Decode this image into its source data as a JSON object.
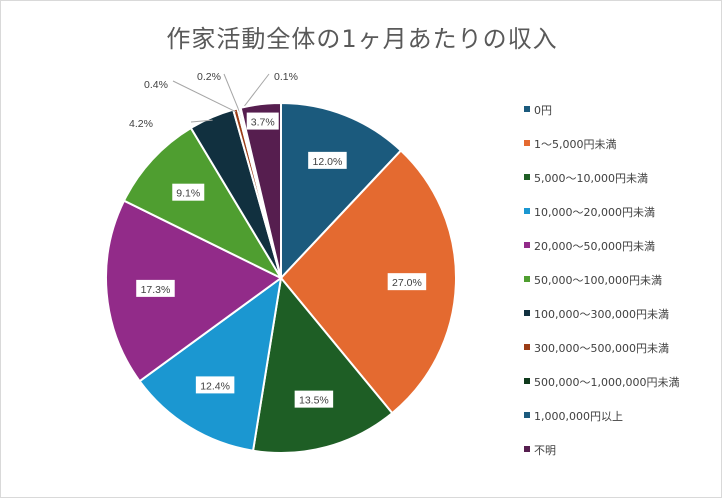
{
  "chart_data": {
    "type": "pie",
    "title": "作家活動全体の1ヶ月あたりの収入",
    "legend_position": "right",
    "start_angle": "top, clockwise",
    "categories": [
      "0円",
      "1〜5,000円未満",
      "5,000〜10,000円未満",
      "10,000〜20,000円未満",
      "20,000〜50,000円未満",
      "50,000〜100,000円未満",
      "100,000〜300,000円未満",
      "300,000〜500,000円未満",
      "500,000〜1,000,000円未満",
      "1,000,000円以上",
      "不明"
    ],
    "values": [
      12.0,
      27.0,
      13.5,
      12.4,
      17.3,
      9.1,
      4.2,
      0.4,
      0.2,
      0.1,
      3.7
    ],
    "labels": [
      "12.0%",
      "27.0%",
      "13.5%",
      "12.4%",
      "17.3%",
      "9.1%",
      "4.2%",
      "0.4%",
      "0.2%",
      "0.1%",
      "3.7%"
    ],
    "colors": [
      "#1b5a7d",
      "#e46a30",
      "#1e5e25",
      "#1b97d1",
      "#922b89",
      "#4f9e30",
      "#11303f",
      "#9b3c16",
      "#0f3a1c",
      "#1b5a7d",
      "#561e4f"
    ]
  }
}
